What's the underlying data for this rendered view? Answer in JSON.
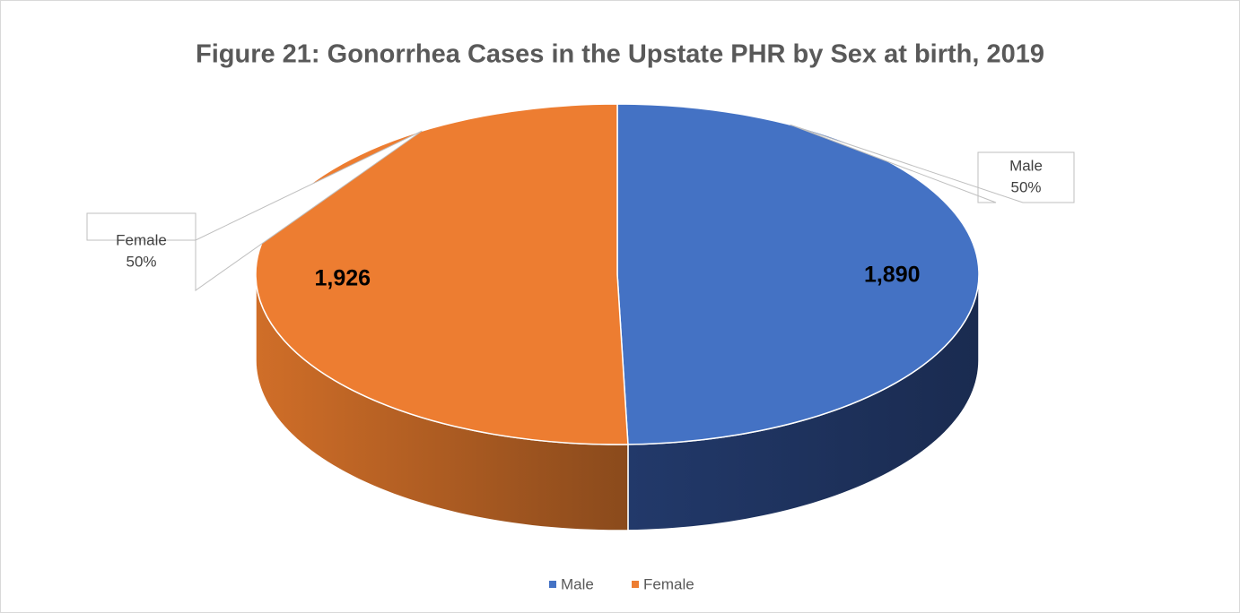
{
  "chart_data": {
    "type": "pie3d",
    "title": "Figure 21: Gonorrhea Cases in the Upstate PHR by Sex at birth, 2019",
    "categories": [
      "Male",
      "Female"
    ],
    "values": [
      1890,
      1926
    ],
    "value_labels": [
      "1,890",
      "1,926"
    ],
    "percent_labels": [
      "50%",
      "50%"
    ],
    "colors": [
      "#4472c4",
      "#ed7d31"
    ],
    "legend": "bottom"
  }
}
